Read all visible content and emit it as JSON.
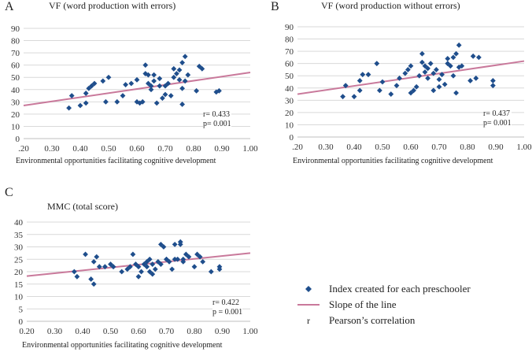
{
  "panels": [
    {
      "label": "A",
      "stats": [
        "r= 0.433",
        "p= 0.001"
      ]
    },
    {
      "label": "B",
      "stats": [
        "r= 0.437",
        "p= 0.001"
      ]
    },
    {
      "label": "C",
      "stats": [
        "r= 0.422",
        "p = 0.001"
      ]
    }
  ],
  "legend": [
    {
      "symbol": "diamond-marker-icon",
      "label": "Index created for each preschooler"
    },
    {
      "symbol": "trend-line-icon",
      "label": "Slope  of the line"
    },
    {
      "symbol": "r",
      "label": "Pearson’s correlation"
    }
  ],
  "colors": {
    "points": "#1f4e8c",
    "trend": "#c9799b",
    "grid": "#d9d9d9",
    "axis": "#bfbfbf"
  },
  "chart_data": [
    {
      "type": "scatter",
      "title": "VF (word production with errors)",
      "xlabel": "Environmental opportunities facilitating cognitive development",
      "ylabel": "",
      "xticks": [
        ".20",
        "0.30",
        "0.40",
        "0.50",
        "0.60",
        "0.70",
        "0.80",
        "0.90",
        "1.00"
      ],
      "xlim": [
        0.2,
        1.0
      ],
      "ylim": [
        0,
        90
      ],
      "yticks": [
        0,
        10,
        20,
        30,
        40,
        50,
        60,
        70,
        80,
        90
      ],
      "grid": true,
      "trend": [
        [
          0.2,
          27
        ],
        [
          1.0,
          54
        ]
      ],
      "points": [
        [
          0.36,
          25
        ],
        [
          0.37,
          35
        ],
        [
          0.4,
          27
        ],
        [
          0.42,
          29
        ],
        [
          0.42,
          37
        ],
        [
          0.43,
          41
        ],
        [
          0.44,
          43
        ],
        [
          0.45,
          45
        ],
        [
          0.48,
          47
        ],
        [
          0.49,
          30
        ],
        [
          0.5,
          50
        ],
        [
          0.53,
          30
        ],
        [
          0.55,
          35
        ],
        [
          0.56,
          44
        ],
        [
          0.58,
          45
        ],
        [
          0.6,
          30
        ],
        [
          0.6,
          48
        ],
        [
          0.61,
          29
        ],
        [
          0.62,
          30
        ],
        [
          0.63,
          60
        ],
        [
          0.63,
          53
        ],
        [
          0.64,
          52
        ],
        [
          0.64,
          45
        ],
        [
          0.65,
          43
        ],
        [
          0.65,
          40
        ],
        [
          0.66,
          52
        ],
        [
          0.66,
          47
        ],
        [
          0.67,
          29
        ],
        [
          0.68,
          43
        ],
        [
          0.68,
          49
        ],
        [
          0.69,
          33
        ],
        [
          0.7,
          36
        ],
        [
          0.7,
          43
        ],
        [
          0.71,
          45
        ],
        [
          0.72,
          35
        ],
        [
          0.73,
          50
        ],
        [
          0.73,
          57
        ],
        [
          0.74,
          53
        ],
        [
          0.75,
          56
        ],
        [
          0.75,
          48
        ],
        [
          0.76,
          28
        ],
        [
          0.76,
          41
        ],
        [
          0.76,
          62
        ],
        [
          0.77,
          67
        ],
        [
          0.77,
          47
        ],
        [
          0.78,
          52
        ],
        [
          0.81,
          39
        ],
        [
          0.82,
          59
        ],
        [
          0.83,
          57
        ],
        [
          0.88,
          38
        ],
        [
          0.89,
          39
        ]
      ]
    },
    {
      "type": "scatter",
      "title": "VF (word production without errors)",
      "xlabel": "Environmental opportunities facilitating cognitive development",
      "ylabel": "",
      "xticks": [
        ".20",
        "0.30",
        "0.40",
        "0.50",
        "0.60",
        "0.70",
        "0.80",
        "0.90",
        "1.00"
      ],
      "xlim": [
        0.2,
        1.0
      ],
      "ylim": [
        0,
        90
      ],
      "yticks": [
        0,
        10,
        20,
        30,
        40,
        50,
        60,
        70,
        80,
        90
      ],
      "grid": true,
      "trend": [
        [
          0.2,
          35
        ],
        [
          1.0,
          62
        ]
      ],
      "points": [
        [
          0.36,
          33
        ],
        [
          0.37,
          42
        ],
        [
          0.4,
          33
        ],
        [
          0.42,
          38
        ],
        [
          0.42,
          46
        ],
        [
          0.43,
          51
        ],
        [
          0.45,
          51
        ],
        [
          0.48,
          60
        ],
        [
          0.49,
          38
        ],
        [
          0.5,
          45
        ],
        [
          0.53,
          35
        ],
        [
          0.55,
          42
        ],
        [
          0.56,
          48
        ],
        [
          0.58,
          52
        ],
        [
          0.59,
          55
        ],
        [
          0.6,
          36
        ],
        [
          0.6,
          58
        ],
        [
          0.61,
          38
        ],
        [
          0.62,
          41
        ],
        [
          0.63,
          50
        ],
        [
          0.64,
          68
        ],
        [
          0.64,
          61
        ],
        [
          0.65,
          58
        ],
        [
          0.65,
          53
        ],
        [
          0.66,
          56
        ],
        [
          0.66,
          48
        ],
        [
          0.67,
          60
        ],
        [
          0.68,
          38
        ],
        [
          0.68,
          52
        ],
        [
          0.69,
          55
        ],
        [
          0.7,
          41
        ],
        [
          0.7,
          47
        ],
        [
          0.71,
          51
        ],
        [
          0.72,
          43
        ],
        [
          0.73,
          60
        ],
        [
          0.73,
          64
        ],
        [
          0.74,
          58
        ],
        [
          0.75,
          65
        ],
        [
          0.75,
          50
        ],
        [
          0.76,
          36
        ],
        [
          0.76,
          68
        ],
        [
          0.77,
          75
        ],
        [
          0.77,
          57
        ],
        [
          0.78,
          58
        ],
        [
          0.81,
          46
        ],
        [
          0.82,
          66
        ],
        [
          0.83,
          48
        ],
        [
          0.84,
          65
        ],
        [
          0.89,
          42
        ],
        [
          0.89,
          46
        ]
      ]
    },
    {
      "type": "scatter",
      "title": "MMC (total score)",
      "xlabel": "Environmental opportunities facilitating cognitive development",
      "ylabel": "",
      "xticks": [
        "0.20",
        "0.30",
        "0.40",
        "0.50",
        "0.60",
        "0.70",
        "0.80",
        "0.90",
        "1.00"
      ],
      "xlim": [
        0.2,
        1.0
      ],
      "ylim": [
        0,
        40
      ],
      "yticks": [
        0,
        5,
        10,
        15,
        20,
        25,
        30,
        35,
        40
      ],
      "grid": true,
      "trend": [
        [
          0.2,
          18.2
        ],
        [
          1.0,
          27.5
        ]
      ],
      "points": [
        [
          0.37,
          20
        ],
        [
          0.38,
          18
        ],
        [
          0.41,
          27
        ],
        [
          0.43,
          17
        ],
        [
          0.44,
          15
        ],
        [
          0.44,
          24
        ],
        [
          0.45,
          26
        ],
        [
          0.46,
          22
        ],
        [
          0.48,
          22
        ],
        [
          0.5,
          23
        ],
        [
          0.51,
          22
        ],
        [
          0.54,
          20
        ],
        [
          0.56,
          21
        ],
        [
          0.57,
          22
        ],
        [
          0.58,
          27
        ],
        [
          0.59,
          23
        ],
        [
          0.6,
          18
        ],
        [
          0.6,
          22
        ],
        [
          0.61,
          20
        ],
        [
          0.62,
          23
        ],
        [
          0.63,
          24
        ],
        [
          0.63,
          22
        ],
        [
          0.64,
          20
        ],
        [
          0.64,
          25
        ],
        [
          0.65,
          19
        ],
        [
          0.65,
          23
        ],
        [
          0.66,
          21
        ],
        [
          0.67,
          24
        ],
        [
          0.68,
          23
        ],
        [
          0.68,
          31
        ],
        [
          0.69,
          30
        ],
        [
          0.7,
          25
        ],
        [
          0.7,
          25
        ],
        [
          0.71,
          24
        ],
        [
          0.72,
          21
        ],
        [
          0.73,
          25
        ],
        [
          0.73,
          31
        ],
        [
          0.74,
          25
        ],
        [
          0.75,
          32
        ],
        [
          0.75,
          31
        ],
        [
          0.76,
          25
        ],
        [
          0.76,
          24
        ],
        [
          0.77,
          27
        ],
        [
          0.78,
          26
        ],
        [
          0.8,
          22
        ],
        [
          0.81,
          27
        ],
        [
          0.82,
          26
        ],
        [
          0.83,
          24
        ],
        [
          0.86,
          20
        ],
        [
          0.89,
          22
        ],
        [
          0.89,
          21
        ]
      ]
    }
  ]
}
